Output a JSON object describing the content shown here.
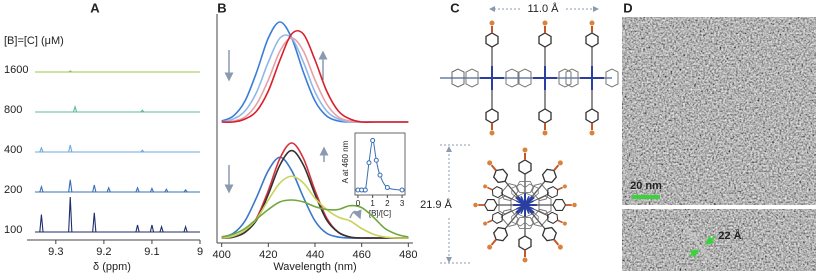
{
  "chart_data": [
    {
      "type": "spectra",
      "label": "A",
      "title": "[B]=[C] (μM)",
      "x_label": "δ (ppm)",
      "xlim": [
        9.36,
        9.0
      ],
      "xticks": [
        9.3,
        9.2,
        9.1,
        9
      ],
      "series": [
        {
          "name": "1600",
          "color": "#9cc44a",
          "x": [
            9.27
          ],
          "values": [
            0.03
          ]
        },
        {
          "name": "800",
          "color": "#5fb7a0",
          "x": [
            9.26,
            9.12
          ],
          "values": [
            0.15,
            0.05
          ]
        },
        {
          "name": "400",
          "color": "#6fa8dc",
          "x": [
            9.33,
            9.27,
            9.12
          ],
          "values": [
            0.12,
            0.2,
            0.05
          ]
        },
        {
          "name": "200",
          "color": "#3b6fb5",
          "x": [
            9.33,
            9.27,
            9.22,
            9.19,
            9.13,
            9.1,
            9.07,
            9.03
          ],
          "values": [
            0.15,
            0.35,
            0.2,
            0.12,
            0.12,
            0.1,
            0.08,
            0.06
          ]
        },
        {
          "name": "100",
          "color": "#1f2d6b",
          "x": [
            9.33,
            9.27,
            9.22,
            9.13,
            9.1,
            9.08,
            9.03
          ],
          "values": [
            0.5,
            1.0,
            0.55,
            0.2,
            0.2,
            0.15,
            0.15
          ]
        }
      ]
    },
    {
      "type": "line",
      "label": "B",
      "xlim": [
        398,
        482
      ],
      "x": [
        400,
        405,
        410,
        415,
        420,
        425,
        430,
        435,
        440,
        445,
        450,
        455,
        460,
        465,
        470,
        475,
        480
      ],
      "series": [
        {
          "color": "#3b7dd8",
          "values": [
            0.01,
            0.06,
            0.21,
            0.5,
            0.84,
            1,
            0.84,
            0.5,
            0.21,
            0.06,
            0.01,
            0,
            0,
            0,
            0,
            0,
            0
          ]
        },
        {
          "color": "#8fb8e8",
          "values": [
            0,
            0.03,
            0.11,
            0.3,
            0.6,
            0.84,
            0.84,
            0.6,
            0.3,
            0.11,
            0.03,
            0,
            0,
            0,
            0,
            0,
            0
          ]
        },
        {
          "color": "#e8a0a8",
          "values": [
            0,
            0.01,
            0.05,
            0.18,
            0.42,
            0.71,
            0.84,
            0.71,
            0.42,
            0.18,
            0.05,
            0.01,
            0,
            0,
            0,
            0,
            0
          ]
        },
        {
          "color": "#d8202c",
          "values": [
            0,
            0,
            0.03,
            0.11,
            0.31,
            0.62,
            0.88,
            0.88,
            0.62,
            0.31,
            0.11,
            0.03,
            0,
            0,
            0,
            0,
            0
          ]
        }
      ]
    },
    {
      "type": "line",
      "x_label": "Wavelength (nm)",
      "xlim": [
        398,
        482
      ],
      "xticks": [
        400,
        420,
        440,
        460,
        480
      ],
      "x": [
        400,
        405,
        410,
        415,
        420,
        425,
        430,
        435,
        440,
        445,
        450,
        455,
        460,
        465,
        470,
        475,
        480
      ],
      "series": [
        {
          "color": "#3a78c8",
          "values": [
            0.01,
            0.05,
            0.18,
            0.43,
            0.71,
            0.85,
            0.71,
            0.43,
            0.18,
            0.05,
            0.01,
            0,
            0,
            0,
            0,
            0,
            0
          ]
        },
        {
          "color": "#d8303c",
          "values": [
            0,
            0.01,
            0.06,
            0.21,
            0.5,
            0.84,
            1,
            0.84,
            0.5,
            0.21,
            0.06,
            0.01,
            0,
            0,
            0,
            0,
            0
          ]
        },
        {
          "color": "#333333",
          "values": [
            0,
            0.01,
            0.06,
            0.19,
            0.46,
            0.77,
            0.92,
            0.77,
            0.46,
            0.19,
            0.06,
            0.01,
            0,
            0,
            0,
            0,
            0
          ]
        },
        {
          "color": "#c9d35a",
          "values": [
            0,
            0.02,
            0.08,
            0.2,
            0.4,
            0.58,
            0.65,
            0.58,
            0.42,
            0.3,
            0.22,
            0.18,
            0.1,
            0.04,
            0.01,
            0,
            0
          ]
        },
        {
          "color": "#6ea83c",
          "values": [
            0.01,
            0.04,
            0.1,
            0.2,
            0.3,
            0.38,
            0.4,
            0.38,
            0.33,
            0.3,
            0.3,
            0.34,
            0.32,
            0.22,
            0.1,
            0.04,
            0.01
          ]
        }
      ]
    },
    {
      "type": "scatter",
      "y_label": "A at 460 nm",
      "x_label": "[B]/[C]",
      "color": "#3a6fb5",
      "xlim": [
        -0.2,
        3.2
      ],
      "xticks": [
        0,
        1,
        2,
        3
      ],
      "ylim": [
        -0.1,
        1.15
      ],
      "x": [
        0,
        0.25,
        0.5,
        0.75,
        1,
        1.25,
        1.5,
        2,
        3
      ],
      "values": [
        0,
        0,
        0,
        0.55,
        1,
        0.6,
        0.3,
        0.05,
        0
      ]
    }
  ],
  "panel_c": {
    "label": "C",
    "width_label": "11.0 Å",
    "height_label": "21.9 Å"
  },
  "panel_d": {
    "label": "D",
    "scale_bar": "20 nm",
    "spacing": "22 Å"
  }
}
